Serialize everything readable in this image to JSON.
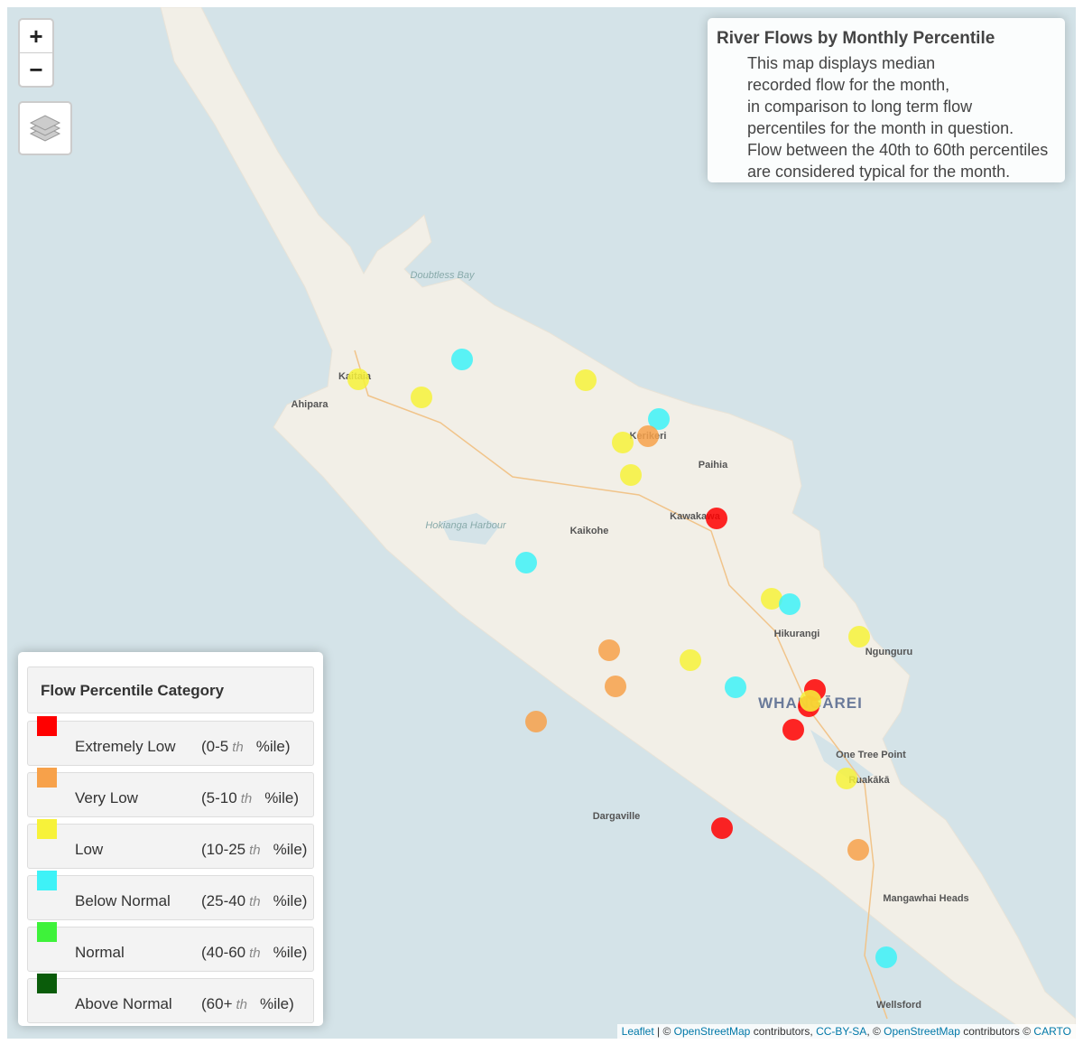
{
  "zoom_controls": {
    "zoom_in": "+",
    "zoom_out": "−"
  },
  "info_box": {
    "title": "River Flows by Monthly Percentile",
    "lines": [
      "This map displays median",
      "recorded flow for the month,",
      "in comparison to long term flow",
      "percentiles for the month in question.",
      "Flow between the 40th to 60th percentiles",
      "are considered typical for the month."
    ]
  },
  "legend": {
    "title": "Flow Percentile Category",
    "items": [
      {
        "label": "Extremely Low",
        "range": "(0-5",
        "suffix": "th",
        "unit": "%ile)",
        "color": "#ff0000"
      },
      {
        "label": "Very Low",
        "range": "(5-10",
        "suffix": "th",
        "unit": "%ile)",
        "color": "#f7a14a"
      },
      {
        "label": "Low",
        "range": "(10-25",
        "suffix": "th",
        "unit": "%ile)",
        "color": "#f7f23a"
      },
      {
        "label": "Below Normal",
        "range": "(25-40",
        "suffix": "th",
        "unit": "%ile)",
        "color": "#3ef2f7"
      },
      {
        "label": "Normal",
        "range": "(40-60",
        "suffix": "th",
        "unit": "%ile)",
        "color": "#3ef23a"
      },
      {
        "label": "Above Normal",
        "range": "(60+",
        "suffix": "th",
        "unit": "%ile)",
        "color": "#0a5c0a"
      }
    ]
  },
  "places": [
    "Doubtless Bay",
    "Kaitaia",
    "Ahipara",
    "Kerikeri",
    "Paihia",
    "Hokianga Harbour",
    "Kaikohe",
    "Kawakawa",
    "Hikurangi",
    "Ngunguru",
    "WHANGĀREI",
    "One Tree Point",
    "Ruakākā",
    "Dargaville",
    "Mangawhai Heads",
    "Wellsford"
  ],
  "attribution": [
    "Leaflet",
    " | © ",
    "OpenStreetMap",
    " contributors, ",
    "CC-BY-SA",
    ", © ",
    "OpenStreetMap",
    " contributors © ",
    "CARTO"
  ]
}
